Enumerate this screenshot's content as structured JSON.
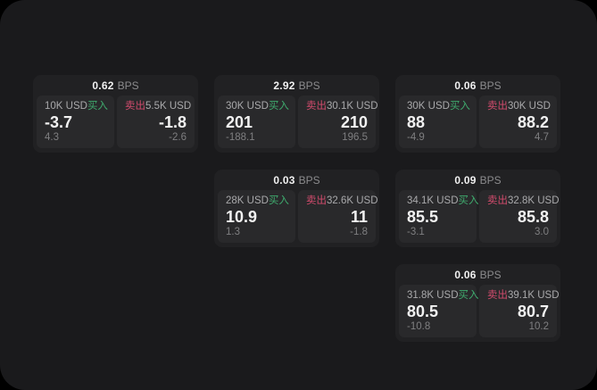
{
  "colors": {
    "buy": "#3fab6e",
    "sell": "#d14b6c",
    "page_background": "#1a1a1c",
    "card_background": "#212123",
    "panel_background": "#29292b"
  },
  "labels": {
    "bps": "BPS",
    "buy": "买入",
    "sell": "卖出"
  },
  "cards": [
    {
      "bps": "0.62",
      "buy": {
        "amount": "10K USD",
        "value": "-3.7",
        "sub": "4.3"
      },
      "sell": {
        "amount": "5.5K USD",
        "value": "-1.8",
        "sub": "-2.6"
      }
    },
    {
      "bps": "2.92",
      "buy": {
        "amount": "30K USD",
        "value": "201",
        "sub": "-188.1"
      },
      "sell": {
        "amount": "30.1K USD",
        "value": "210",
        "sub": "196.5"
      }
    },
    {
      "bps": "0.06",
      "buy": {
        "amount": "30K USD",
        "value": "88",
        "sub": "-4.9"
      },
      "sell": {
        "amount": "30K USD",
        "value": "88.2",
        "sub": "4.7"
      }
    },
    {
      "bps": "0.03",
      "buy": {
        "amount": "28K USD",
        "value": "10.9",
        "sub": "1.3"
      },
      "sell": {
        "amount": "32.6K USD",
        "value": "11",
        "sub": "-1.8"
      }
    },
    {
      "bps": "0.09",
      "buy": {
        "amount": "34.1K USD",
        "value": "85.5",
        "sub": "-3.1"
      },
      "sell": {
        "amount": "32.8K USD",
        "value": "85.8",
        "sub": "3.0"
      }
    },
    {
      "bps": "0.06",
      "buy": {
        "amount": "31.8K USD",
        "value": "80.5",
        "sub": "-10.8"
      },
      "sell": {
        "amount": "39.1K USD",
        "value": "80.7",
        "sub": "10.2"
      }
    }
  ]
}
